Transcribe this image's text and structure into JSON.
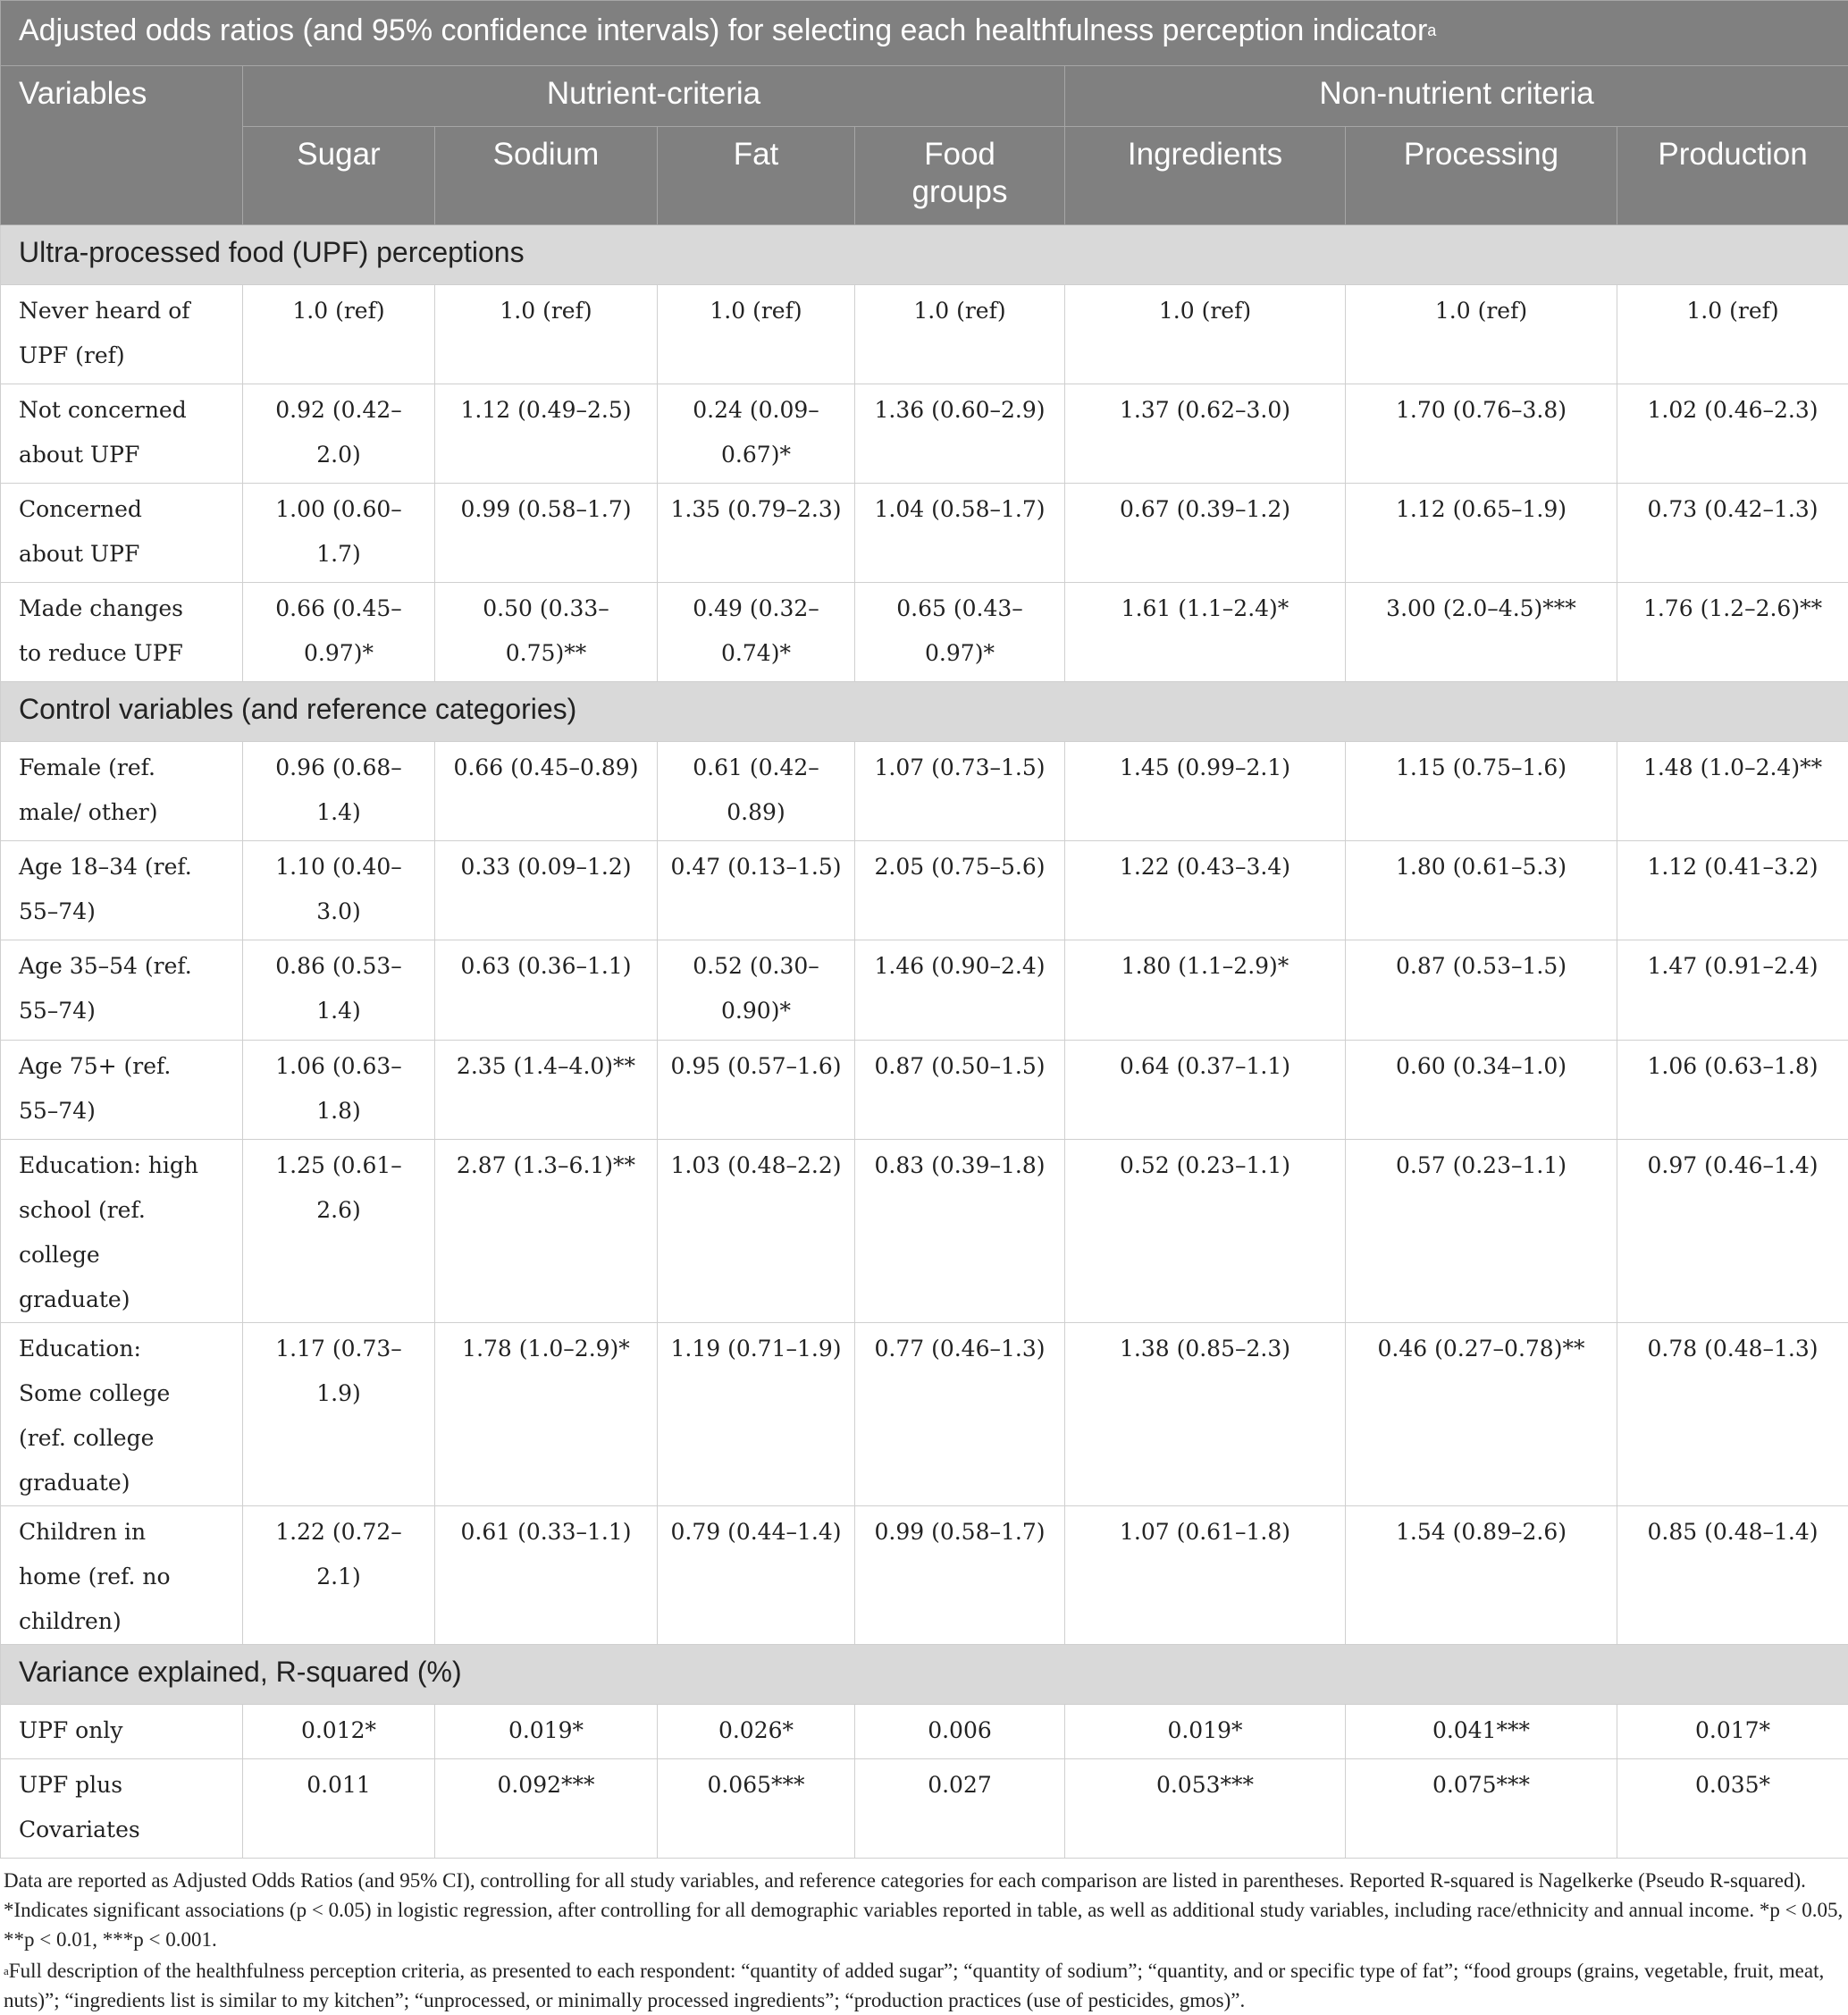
{
  "title": "Adjusted odds ratios (and 95% confidence intervals)  for selecting each healthfulness perception indicator",
  "title_note": "a",
  "header": {
    "first": "Variables",
    "groups": [
      {
        "label": "Nutrient-criteria",
        "columns": [
          "Sugar",
          "Sodium",
          "Fat",
          "Food groups"
        ]
      },
      {
        "label": "Non-nutrient criteria",
        "columns": [
          "Ingredients",
          "Processing",
          "Production"
        ]
      }
    ]
  },
  "sections": [
    {
      "title": "Ultra-processed food (UPF) perceptions",
      "rows": [
        {
          "label": "Never heard of UPF (ref)",
          "cells": [
            "1.0 (ref)",
            "1.0 (ref)",
            "1.0 (ref)",
            "1.0 (ref)",
            "1.0 (ref)",
            "1.0 (ref)",
            "1.0 (ref)"
          ]
        },
        {
          "label": "Not concerned about UPF",
          "cells": [
            "0.92 (0.42–2.0)",
            "1.12 (0.49–2.5)",
            "0.24 (0.09–0.67)*",
            "1.36 (0.60–2.9)",
            "1.37 (0.62–3.0)",
            "1.70 (0.76–3.8)",
            "1.02 (0.46–2.3)"
          ]
        },
        {
          "label": "Concerned about UPF",
          "cells": [
            "1.00 (0.60–1.7)",
            "0.99 (0.58–1.7)",
            "1.35 (0.79–2.3)",
            "1.04 (0.58–1.7)",
            "0.67 (0.39–1.2)",
            "1.12 (0.65–1.9)",
            "0.73 (0.42–1.3)"
          ]
        },
        {
          "label": "Made changes to reduce UPF",
          "cells": [
            "0.66 (0.45–0.97)*",
            "0.50 (0.33–0.75)**",
            "0.49 (0.32–0.74)*",
            "0.65 (0.43–0.97)*",
            "1.61 (1.1–2.4)*",
            "3.00 (2.0–4.5)***",
            "1.76 (1.2–2.6)**"
          ]
        }
      ]
    },
    {
      "title": "Control variables (and reference categories)",
      "rows": [
        {
          "label": "Female (ref. male/ other)",
          "cells": [
            "0.96 (0.68–1.4)",
            "0.66 (0.45–0.89)",
            "0.61 (0.42–0.89)",
            "1.07 (0.73–1.5)",
            "1.45 (0.99–2.1)",
            "1.15 (0.75–1.6)",
            "1.48 (1.0–2.4)**"
          ]
        },
        {
          "label": "Age 18–34 (ref. 55–74)",
          "cells": [
            "1.10 (0.40–3.0)",
            "0.33 (0.09–1.2)",
            "0.47 (0.13–1.5)",
            "2.05 (0.75–5.6)",
            "1.22 (0.43–3.4)",
            "1.80 (0.61–5.3)",
            "1.12 (0.41–3.2)"
          ]
        },
        {
          "label": "Age 35–54 (ref. 55–74)",
          "cells": [
            "0.86 (0.53–1.4)",
            "0.63 (0.36–1.1)",
            "0.52 (0.30–0.90)*",
            "1.46 (0.90–2.4)",
            "1.80 (1.1–2.9)*",
            "0.87 (0.53–1.5)",
            "1.47 (0.91–2.4)"
          ]
        },
        {
          "label": "Age 75+ (ref. 55–74)",
          "cells": [
            "1.06 (0.63–1.8)",
            "2.35 (1.4–4.0)**",
            "0.95 (0.57–1.6)",
            "0.87 (0.50–1.5)",
            "0.64 (0.37–1.1)",
            "0.60 (0.34–1.0)",
            "1.06 (0.63–1.8)"
          ]
        },
        {
          "label": "Education: high school (ref. college graduate)",
          "cells": [
            "1.25 (0.61–2.6)",
            "2.87 (1.3–6.1)**",
            "1.03 (0.48–2.2)",
            "0.83 (0.39–1.8)",
            "0.52 (0.23–1.1)",
            "0.57 (0.23–1.1)",
            "0.97 (0.46–1.4)"
          ]
        },
        {
          "label": "Education: Some college (ref. college graduate)",
          "cells": [
            "1.17 (0.73–1.9)",
            "1.78 (1.0–2.9)*",
            "1.19 (0.71–1.9)",
            "0.77 (0.46–1.3)",
            "1.38 (0.85–2.3)",
            "0.46 (0.27–0.78)**",
            "0.78 (0.48–1.3)"
          ]
        },
        {
          "label": "Children in home (ref. no children)",
          "cells": [
            "1.22 (0.72–2.1)",
            "0.61 (0.33–1.1)",
            "0.79 (0.44–1.4)",
            "0.99 (0.58–1.7)",
            "1.07 (0.61–1.8)",
            "1.54 (0.89–2.6)",
            "0.85 (0.48–1.4)"
          ]
        }
      ]
    },
    {
      "title": "Variance explained, R-squared (%)",
      "rows": [
        {
          "label": "UPF only",
          "cells": [
            "0.012*",
            "0.019*",
            "0.026*",
            "0.006",
            "0.019*",
            "0.041***",
            "0.017*"
          ]
        },
        {
          "label": "UPF plus Covariates",
          "cells": [
            "0.011",
            "0.092***",
            "0.065***",
            "0.027",
            "0.053***",
            "0.075***",
            "0.035*"
          ]
        }
      ]
    }
  ],
  "footnotes": {
    "note": "Data are reported as Adjusted Odds Ratios (and 95% CI), controlling for all study variables, and reference categories for each comparison are listed in parentheses. Reported R-squared is Nagelkerke (Pseudo R-squared). *Indicates significant associations (p < 0.05) in logistic regression, after controlling for all demographic variables reported in table, as well as additional study variables, including race/ethnicity and annual income. *p < 0.05, **p < 0.01, ***p < 0.001.",
    "description_marker": "a",
    "description": "Full description of the healthfulness perception criteria, as presented to each respondent: “quantity of added sugar”; “quantity of sodium”; “quantity, and or specific type of fat”; “food groups (grains, vegetable, fruit, meat, nuts)”; “ingredients list is similar to my kitchen”; “unprocessed, or minimally processed ingredients”; “production practices (use of pesticides, gmos)”."
  }
}
